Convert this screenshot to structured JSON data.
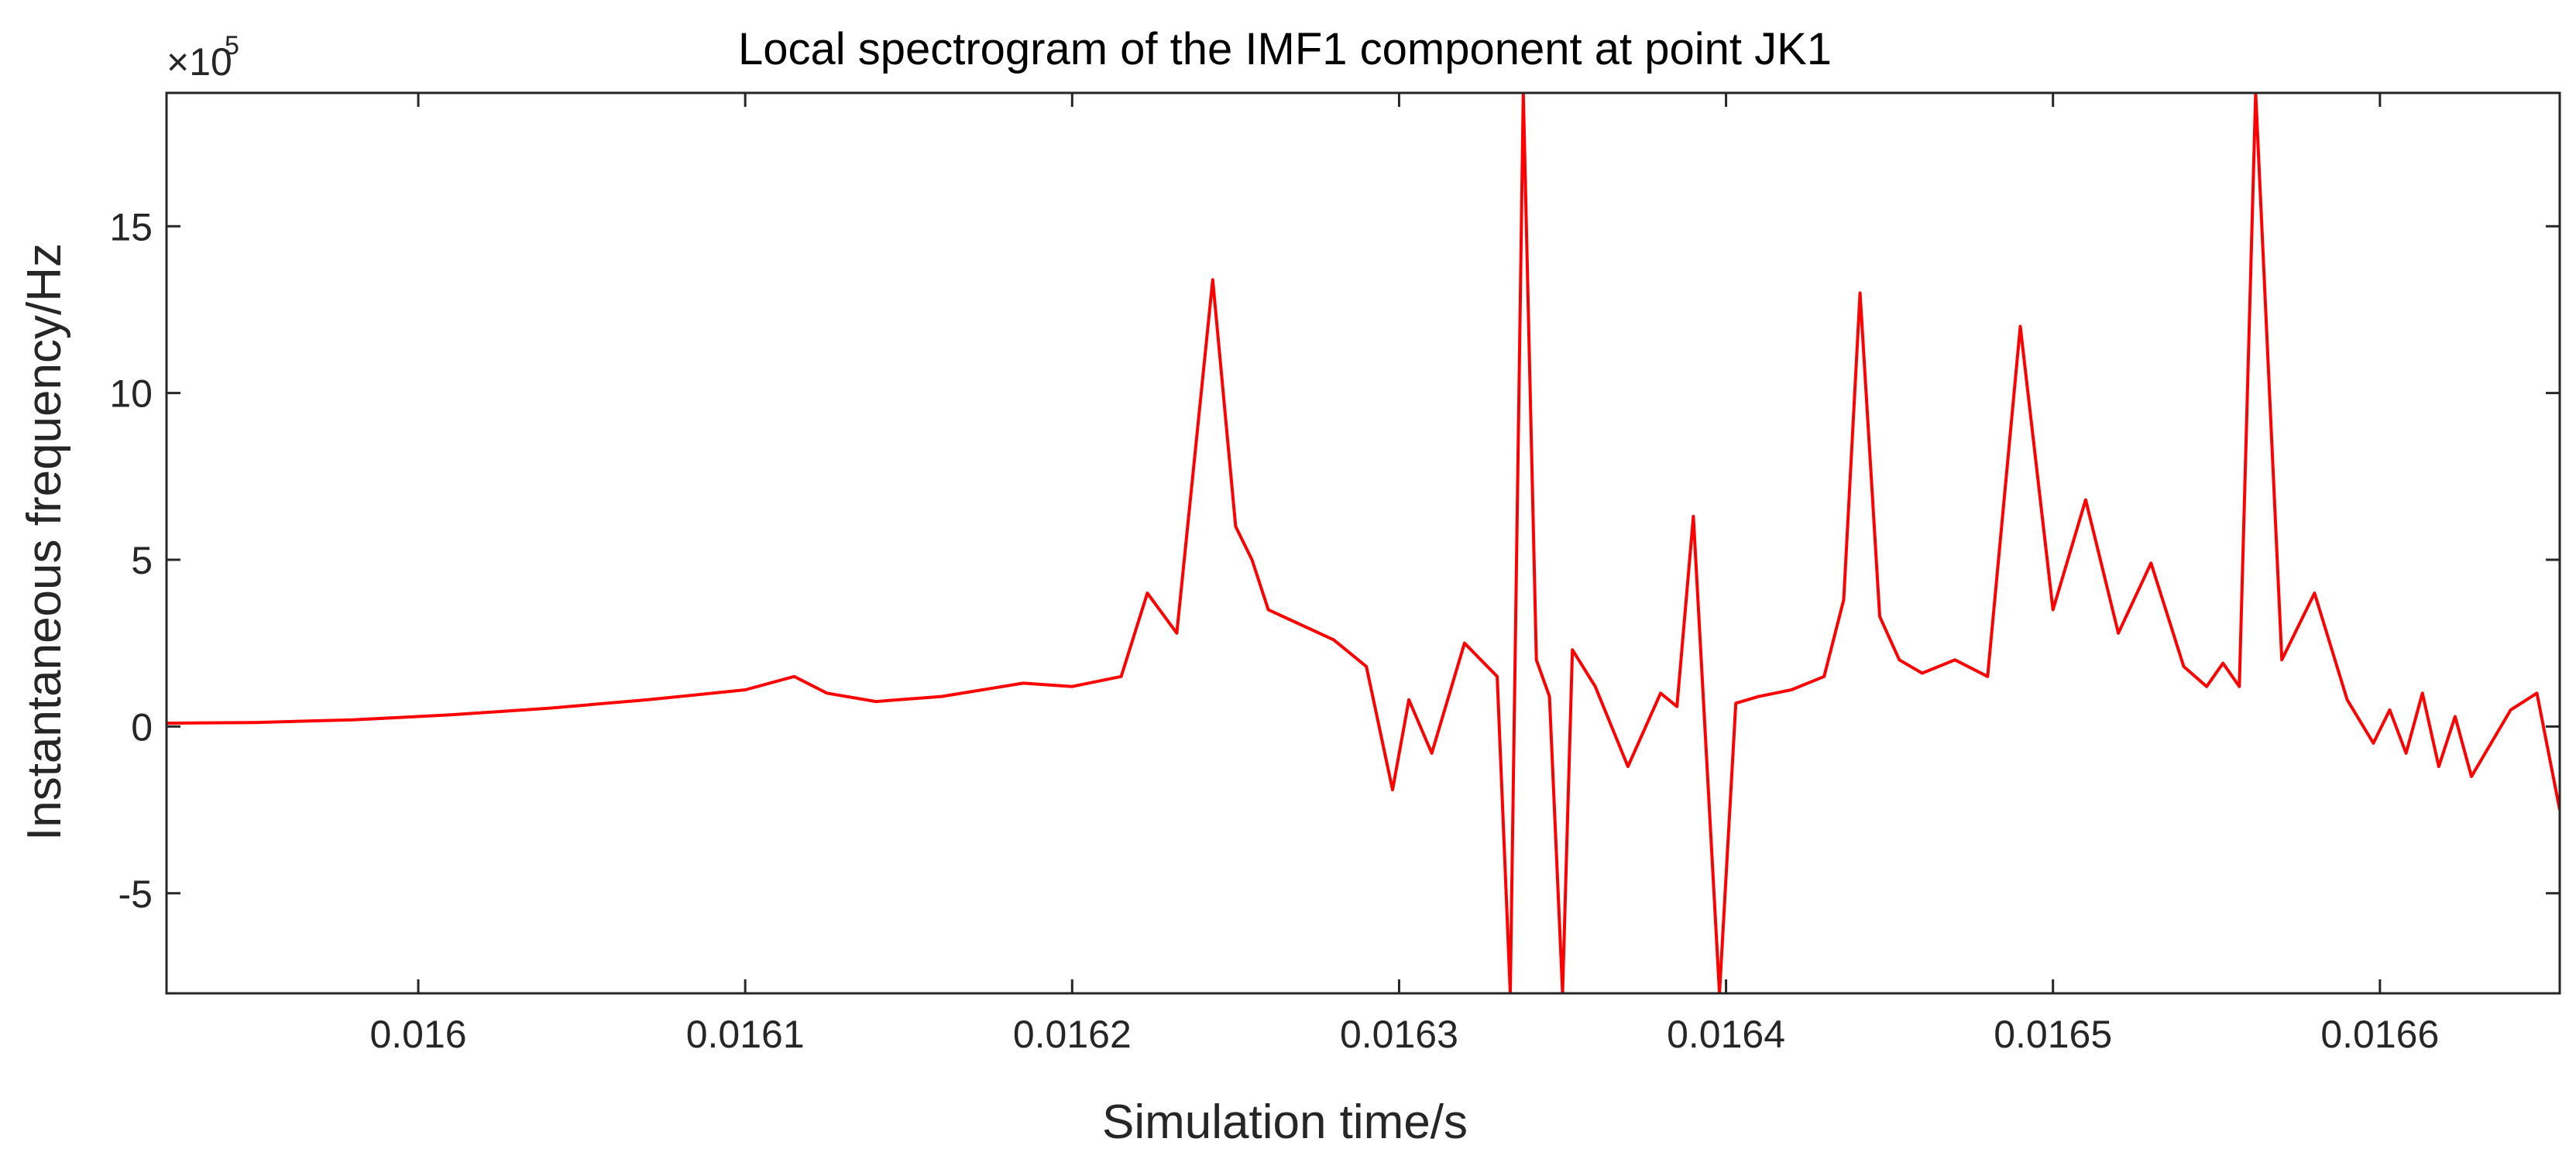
{
  "chart_data": {
    "type": "line",
    "title": "Local spectrogram of the IMF1 component at point JK1",
    "xlabel": "Simulation time/s",
    "ylabel": "Instantaneous frequency/Hz",
    "y_exponent_base": "×10",
    "y_exponent_power": "5",
    "xlim": [
      0.015923,
      0.016655
    ],
    "ylim": [
      -8,
      19
    ],
    "x_ticks": [
      0.016,
      0.0161,
      0.0162,
      0.0163,
      0.0164,
      0.0165,
      0.0166
    ],
    "x_tick_labels": [
      "0.016",
      "0.0161",
      "0.0162",
      "0.0163",
      "0.0164",
      "0.0165",
      "0.0166"
    ],
    "y_ticks": [
      -5,
      0,
      5,
      10,
      15
    ],
    "y_tick_labels": [
      "-5",
      "0",
      "5",
      "10",
      "15"
    ],
    "grid": false,
    "line_color": "#ff0000",
    "series": [
      {
        "x": [
          0.015923,
          0.01595,
          0.01598,
          0.01601,
          0.01604,
          0.01607,
          0.0161,
          0.016115,
          0.016125,
          0.01614,
          0.01616,
          0.016185,
          0.0162,
          0.016215,
          0.016223,
          0.016232,
          0.016243,
          0.01625,
          0.016255,
          0.01626,
          0.01628,
          0.01629,
          0.016298,
          0.016303,
          0.01631,
          0.01632,
          0.01633,
          0.016334,
          0.016338,
          0.016342,
          0.016346,
          0.01635,
          0.016353,
          0.01636,
          0.01637,
          0.01638,
          0.016385,
          0.01639,
          0.016398,
          0.016403,
          0.01641,
          0.01642,
          0.01643,
          0.016436,
          0.016441,
          0.016447,
          0.016453,
          0.01646,
          0.01647,
          0.01648,
          0.01649,
          0.0165,
          0.01651,
          0.01652,
          0.01653,
          0.01654,
          0.016547,
          0.016552,
          0.016557,
          0.016562,
          0.01657,
          0.01658,
          0.01659,
          0.016598,
          0.016603,
          0.016608,
          0.016613,
          0.016618,
          0.016623,
          0.016628,
          0.01664,
          0.016648,
          0.016655
        ],
        "y": [
          0.1,
          0.12,
          0.2,
          0.35,
          0.55,
          0.8,
          1.1,
          1.5,
          1.0,
          0.75,
          0.9,
          1.3,
          1.2,
          1.5,
          4.0,
          2.8,
          13.4,
          6.0,
          5.0,
          3.5,
          2.6,
          1.8,
          -1.9,
          0.8,
          -0.8,
          2.5,
          1.5,
          -8,
          19,
          2.0,
          0.9,
          -8,
          2.3,
          1.2,
          -1.2,
          1.0,
          0.6,
          6.3,
          -8,
          0.7,
          0.9,
          1.1,
          1.5,
          3.8,
          13.0,
          3.3,
          2.0,
          1.6,
          2.0,
          1.5,
          12.0,
          3.5,
          6.8,
          2.8,
          4.9,
          1.8,
          1.2,
          1.9,
          1.2,
          19,
          2.0,
          4.0,
          0.8,
          -0.5,
          0.5,
          -0.8,
          1.0,
          -1.2,
          0.3,
          -1.5,
          0.5,
          1.0,
          -2.5
        ]
      }
    ]
  }
}
